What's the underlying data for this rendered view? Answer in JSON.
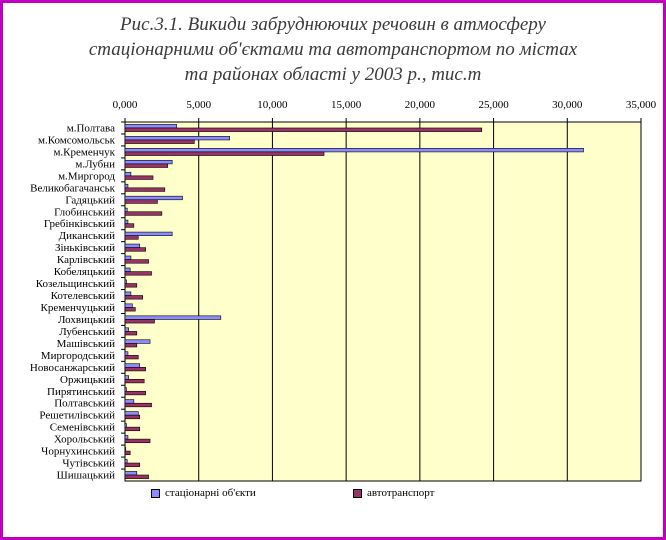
{
  "title": {
    "line1": "Рис.3.1. Викиди забруднюючих речовин в атмосферу",
    "line2": "стаціонарними об'єктами та автотранспортом по містах",
    "line3": "та районах області у 2003 р., тис.т"
  },
  "colors": {
    "stationary": "#8c8cff",
    "transport": "#993366",
    "plot_background": "#ffffcc",
    "border": "#c000c0"
  },
  "legend": {
    "stationary": "стаціонарні об'єкти",
    "transport": "автотранспорт"
  },
  "chart_data": {
    "type": "bar",
    "orientation": "horizontal",
    "title": "Рис.3.1. Викиди забруднюючих речовин в атмосферу стаціонарними об'єктами та автотранспортом по містах та районах області у 2003 р., тис.т",
    "xlim": [
      0,
      35000
    ],
    "x_ticks": [
      "0,000",
      "5,000",
      "10,000",
      "15,000",
      "20,000",
      "25,000",
      "30,000",
      "35,000"
    ],
    "grid": "vertical",
    "legend_position": "bottom",
    "categories": [
      "м.Полтава",
      "м.Комсомольськ",
      "м.Кременчук",
      "м.Лубни",
      "м.Миргород",
      "Великобагачанськ",
      "Гадяцький",
      "Глобинський",
      "Гребінківський",
      "Диканський",
      "Зіньківський",
      "Карлівський",
      "Кобеляцький",
      "Козельщинський",
      "Котелевський",
      "Кременчуцький",
      "Лохвицький",
      "Лубенський",
      "Машівський",
      "Миргородський",
      "Новосанжарський",
      "Оржицький",
      "Пирятинський",
      "Полтавський",
      "Решетилівський",
      "Семенівський",
      "Хорольський",
      "Чорнухинський",
      "Чутівський",
      "Шишацький"
    ],
    "series": [
      {
        "name": "стаціонарні об'єкти",
        "values": [
          3500,
          7100,
          31100,
          3200,
          400,
          200,
          3900,
          150,
          200,
          3200,
          1000,
          400,
          350,
          100,
          400,
          500,
          6500,
          250,
          1700,
          200,
          1000,
          250,
          100,
          600,
          900,
          100,
          200,
          50,
          150,
          800
        ]
      },
      {
        "name": "автотранспорт",
        "values": [
          24200,
          4700,
          13500,
          2900,
          1900,
          2700,
          2200,
          2500,
          600,
          900,
          1400,
          1600,
          1800,
          800,
          1200,
          700,
          2000,
          800,
          800,
          900,
          1400,
          1300,
          1400,
          1800,
          1000,
          1000,
          1700,
          350,
          1000,
          1600
        ]
      }
    ]
  }
}
